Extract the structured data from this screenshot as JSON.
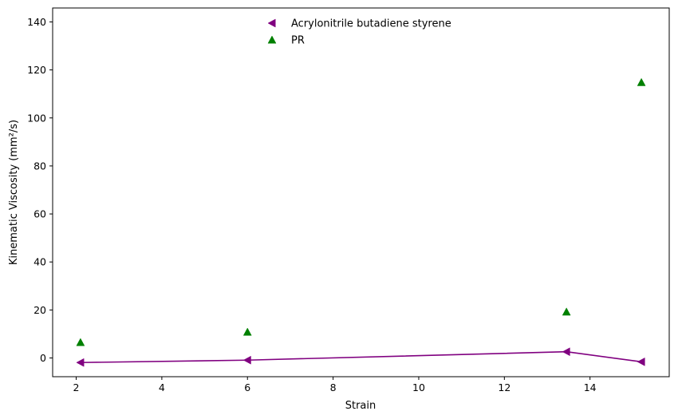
{
  "chart_data": {
    "type": "scatter",
    "xlabel": "Strain",
    "ylabel": "Kinematic Viscosity (mm²/s)",
    "xlim": [
      1.45,
      15.85
    ],
    "ylim": [
      -7.8,
      145.8
    ],
    "xticks": [
      2,
      4,
      6,
      8,
      10,
      12,
      14
    ],
    "yticks": [
      0,
      20,
      40,
      60,
      80,
      100,
      120,
      140
    ],
    "grid": false,
    "legend_position": "top-center",
    "series": [
      {
        "name": "Acrylonitrile butadiene styrene",
        "marker": "triangle-left",
        "line": true,
        "color": "#800080",
        "points": [
          [
            2.1,
            -1.9
          ],
          [
            6.0,
            -0.9
          ],
          [
            13.45,
            2.6
          ],
          [
            15.2,
            -1.6
          ]
        ]
      },
      {
        "name": "PR",
        "marker": "triangle-up",
        "line": false,
        "color": "#008000",
        "points": [
          [
            2.1,
            6.5
          ],
          [
            6.0,
            10.8
          ],
          [
            13.45,
            19.2
          ],
          [
            15.2,
            114.8
          ]
        ]
      }
    ]
  }
}
